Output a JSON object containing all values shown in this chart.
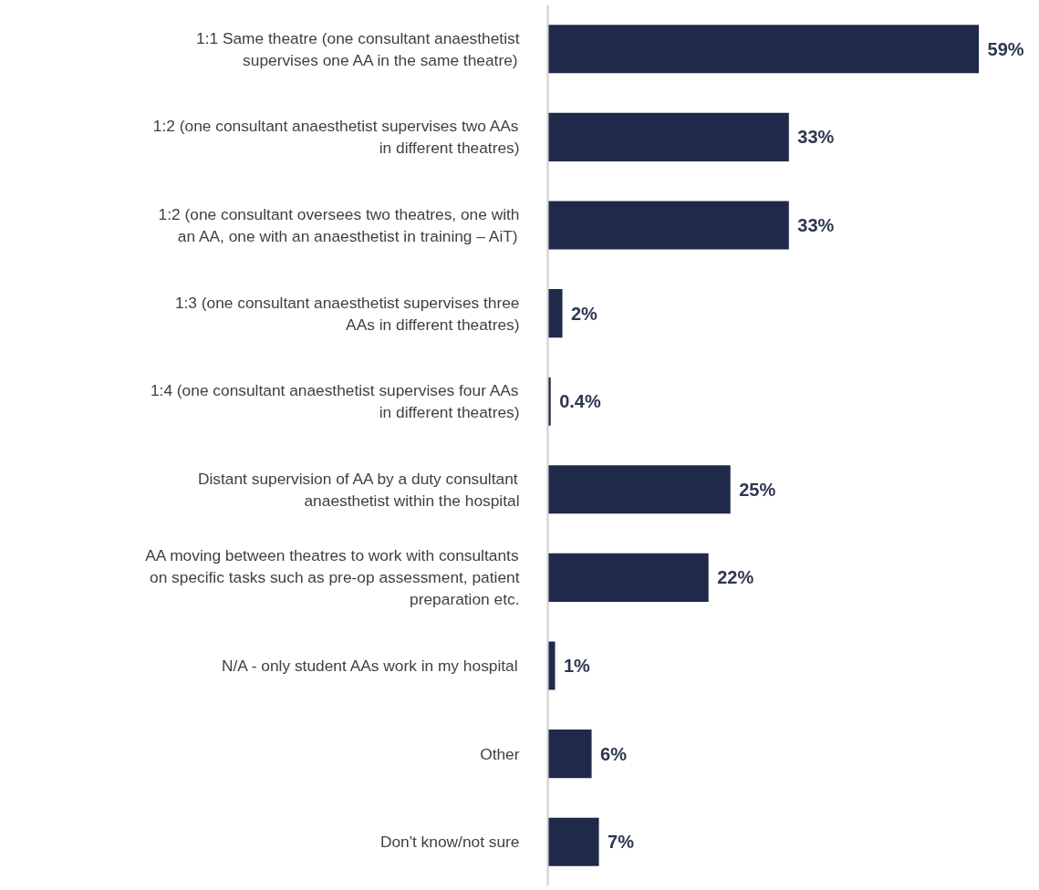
{
  "chart_data": {
    "type": "bar",
    "orientation": "horizontal",
    "categories": [
      "1:1 Same theatre (one consultant anaesthetist supervises one AA in the same theatre)",
      "1:2 (one consultant anaesthetist supervises two AAs in different theatres)",
      "1:2 (one consultant oversees two theatres, one with an AA, one with an anaesthetist in training – AiT)",
      "1:3 (one consultant anaesthetist supervises three AAs in different theatres)",
      "1:4 (one consultant anaesthetist supervises four AAs in different theatres)",
      "Distant supervision of AA by a duty consultant anaesthetist within the hospital",
      "AA moving between theatres to work with consultants on specific tasks such as pre-op assessment, patient preparation etc.",
      "N/A - only student AAs work in my hospital",
      "Other",
      "Don't know/not sure"
    ],
    "values": [
      59,
      33,
      33,
      2,
      0.4,
      25,
      22,
      1,
      6,
      7
    ],
    "value_labels": [
      "59%",
      "33%",
      "33%",
      "2%",
      "0.4%",
      "25%",
      "22%",
      "1%",
      "6%",
      "7%"
    ],
    "color": "#1f2a4a"
  }
}
